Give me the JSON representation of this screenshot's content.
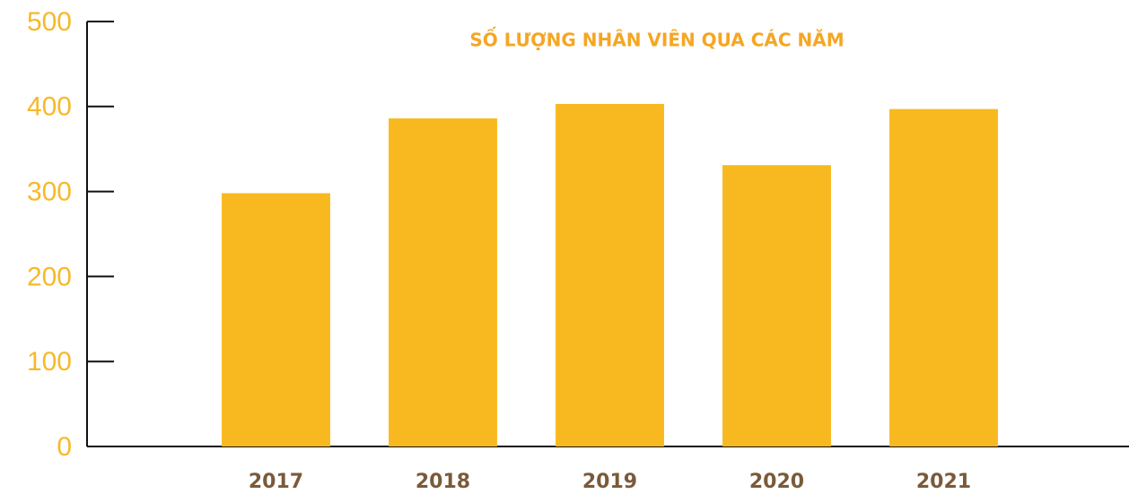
{
  "chart_data": {
    "type": "bar",
    "title": "SỐ LƯỢNG NHÂN VIÊN QUA CÁC NĂM",
    "categories": [
      "2017",
      "2018",
      "2019",
      "2020",
      "2021"
    ],
    "values": [
      298,
      386,
      403,
      331,
      397
    ],
    "color": "#f8b920",
    "ylim": [
      0,
      500
    ],
    "yticks": [
      0,
      100,
      200,
      300,
      400,
      500
    ],
    "grid": false
  }
}
